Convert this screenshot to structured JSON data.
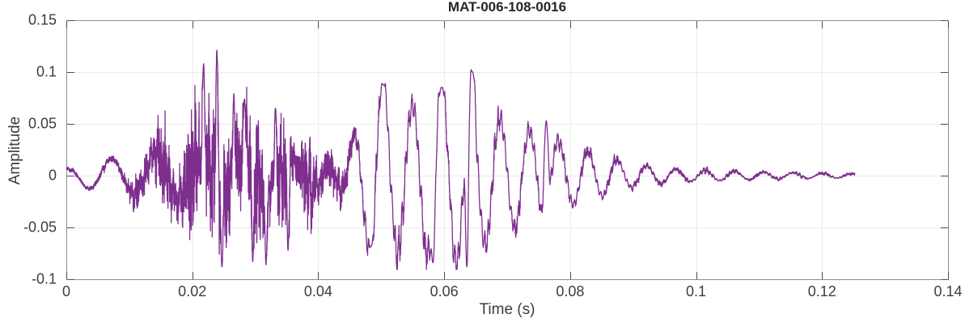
{
  "chart_data": {
    "type": "line",
    "title": "MAT-006-108-0016",
    "xlabel": "Time (s)",
    "ylabel": "Amplitude",
    "xlim": [
      0,
      0.14
    ],
    "ylim": [
      -0.1,
      0.15
    ],
    "xticks": {
      "values": [
        0,
        0.02,
        0.04,
        0.06,
        0.08,
        0.1,
        0.12,
        0.14
      ],
      "labels": [
        "0",
        "0.02",
        "0.04",
        "0.06",
        "0.08",
        "0.1",
        "0.12",
        "0.14"
      ]
    },
    "yticks": {
      "values": [
        -0.1,
        -0.05,
        0,
        0.05,
        0.1,
        0.15
      ],
      "labels": [
        "-0.1",
        "-0.05",
        "0",
        "0.05",
        "0.1",
        "0.15"
      ]
    },
    "grid": true,
    "legend": "none",
    "style": {
      "line_color": "#7E2F8E",
      "line_width": 1.3,
      "background": "#ffffff",
      "box_color": "#8e8e8e",
      "tick_color": "#4d4d4d",
      "grid_color": "#ebebeb",
      "text_color": "#3d3d3d",
      "title_color": "#262626",
      "tick_len": 9
    },
    "signal": {
      "description": "Impulsive waveform: low-amplitude ~140 Hz onset, broadband noise burst 0.01-0.045 s with spikes to +0.121/-0.088, coherent ~215 Hz ring-down 0.045-0.08 s peaking +0.100 at 0.0645 s, decaying ripple tail ending at 0.1252 s",
      "duration_s": 0.1252,
      "sample_rate_hz": 50000,
      "seed": 20160,
      "tone_hz": 215,
      "tone_peak_align_s": 0.0503,
      "slow_hz": 140,
      "slow_peak_align_s": 0.0071,
      "ripple_hz": 1900,
      "ripple_ratio": 0.14,
      "tone_envelope": [
        [
          0,
          0
        ],
        [
          0.04,
          0
        ],
        [
          0.043,
          0.015
        ],
        [
          0.046,
          0.045
        ],
        [
          0.049,
          0.082
        ],
        [
          0.0505,
          0.088
        ],
        [
          0.052,
          0.075
        ],
        [
          0.055,
          0.068
        ],
        [
          0.058,
          0.08
        ],
        [
          0.062,
          0.085
        ],
        [
          0.0645,
          0.098
        ],
        [
          0.066,
          0.07
        ],
        [
          0.069,
          0.055
        ],
        [
          0.071,
          0.052
        ],
        [
          0.074,
          0.042
        ],
        [
          0.076,
          0.05
        ],
        [
          0.078,
          0.035
        ],
        [
          0.08,
          0.028
        ],
        [
          0.083,
          0.024
        ],
        [
          0.086,
          0.018
        ],
        [
          0.089,
          0.012
        ],
        [
          0.093,
          0.009
        ],
        [
          0.097,
          0.006
        ],
        [
          0.102,
          0.005
        ],
        [
          0.108,
          0.004
        ],
        [
          0.114,
          0.003
        ],
        [
          0.12,
          0.0025
        ],
        [
          0.1252,
          0.002
        ]
      ],
      "slow_envelope": [
        [
          0,
          0.006
        ],
        [
          0.003,
          0.012
        ],
        [
          0.007,
          0.016
        ],
        [
          0.011,
          0.018
        ],
        [
          0.016,
          0.022
        ],
        [
          0.022,
          0.02
        ],
        [
          0.03,
          0.018
        ],
        [
          0.038,
          0.012
        ],
        [
          0.044,
          0.006
        ],
        [
          0.05,
          0
        ]
      ],
      "noise_envelope": [
        [
          0,
          0.002
        ],
        [
          0.005,
          0.003
        ],
        [
          0.008,
          0.005
        ],
        [
          0.01,
          0.01
        ],
        [
          0.012,
          0.022
        ],
        [
          0.014,
          0.032
        ],
        [
          0.016,
          0.038
        ],
        [
          0.018,
          0.042
        ],
        [
          0.02,
          0.055
        ],
        [
          0.0225,
          0.068
        ],
        [
          0.024,
          0.07
        ],
        [
          0.026,
          0.058
        ],
        [
          0.028,
          0.062
        ],
        [
          0.03,
          0.058
        ],
        [
          0.032,
          0.06
        ],
        [
          0.034,
          0.048
        ],
        [
          0.036,
          0.042
        ],
        [
          0.038,
          0.036
        ],
        [
          0.04,
          0.03
        ],
        [
          0.042,
          0.024
        ],
        [
          0.044,
          0.016
        ],
        [
          0.046,
          0.011
        ],
        [
          0.05,
          0.009
        ],
        [
          0.055,
          0.009
        ],
        [
          0.06,
          0.008
        ],
        [
          0.065,
          0.008
        ],
        [
          0.07,
          0.007
        ],
        [
          0.075,
          0.006
        ],
        [
          0.08,
          0.005
        ],
        [
          0.085,
          0.004
        ],
        [
          0.09,
          0.003
        ],
        [
          0.095,
          0.0025
        ],
        [
          0.1,
          0.002
        ],
        [
          0.11,
          0.0015
        ],
        [
          0.1252,
          0.001
        ]
      ],
      "extrema": [
        [
          0.0218,
          0.108,
          0.0004
        ],
        [
          0.0239,
          0.121,
          0.0004
        ],
        [
          0.0247,
          -0.088,
          0.0004
        ],
        [
          0.0266,
          0.079,
          0.0004
        ],
        [
          0.0283,
          0.074,
          0.0004
        ],
        [
          0.0296,
          -0.083,
          0.0004
        ],
        [
          0.0317,
          -0.086,
          0.0004
        ],
        [
          0.0332,
          0.065,
          0.0004
        ],
        [
          0.0352,
          -0.072,
          0.0004
        ],
        [
          0.0484,
          -0.068,
          0.0008
        ],
        [
          0.0503,
          0.088,
          0.0008
        ],
        [
          0.0582,
          -0.084,
          0.0007
        ],
        [
          0.0596,
          0.085,
          0.0008
        ],
        [
          0.0636,
          -0.088,
          0.0006
        ],
        [
          0.0645,
          0.1,
          0.0007
        ],
        [
          0.0762,
          0.053,
          0.0008
        ]
      ]
    }
  }
}
